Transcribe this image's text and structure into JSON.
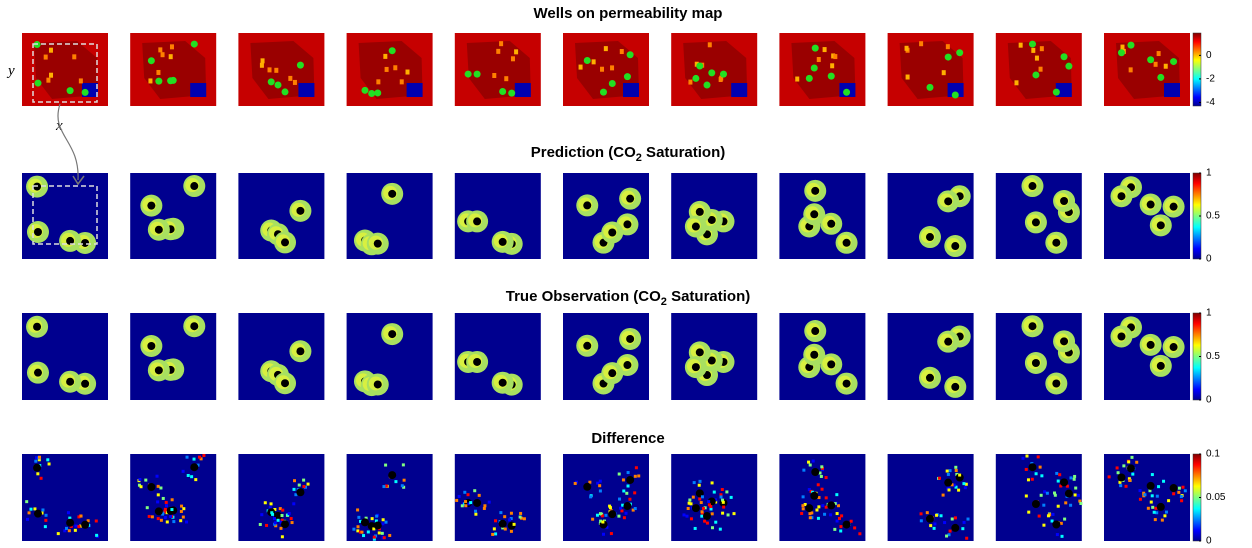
{
  "rows": [
    {
      "title": {
        "before": "Wells on permeability map"
      },
      "colorbar": {
        "clim": [
          -4.3,
          1.9
        ],
        "ticks": [
          0,
          -2,
          -4
        ]
      }
    },
    {
      "title": {
        "before": "Prediction (CO",
        "sub": "2",
        "after": " Saturation)"
      },
      "colorbar": {
        "clim": [
          0,
          1
        ],
        "ticks": [
          1,
          0.5,
          0
        ]
      }
    },
    {
      "title": {
        "before": "True Observation (CO",
        "sub": "2",
        "after": " Saturation)"
      },
      "colorbar": {
        "clim": [
          0,
          1
        ],
        "ticks": [
          1,
          0.5,
          0
        ]
      }
    },
    {
      "title": {
        "before": "Difference"
      },
      "colorbar": {
        "clim": [
          0,
          0.1
        ],
        "ticks": [
          0.1,
          0.05,
          0
        ]
      }
    }
  ],
  "axis_labels": {
    "y": "y",
    "x": "x"
  }
}
